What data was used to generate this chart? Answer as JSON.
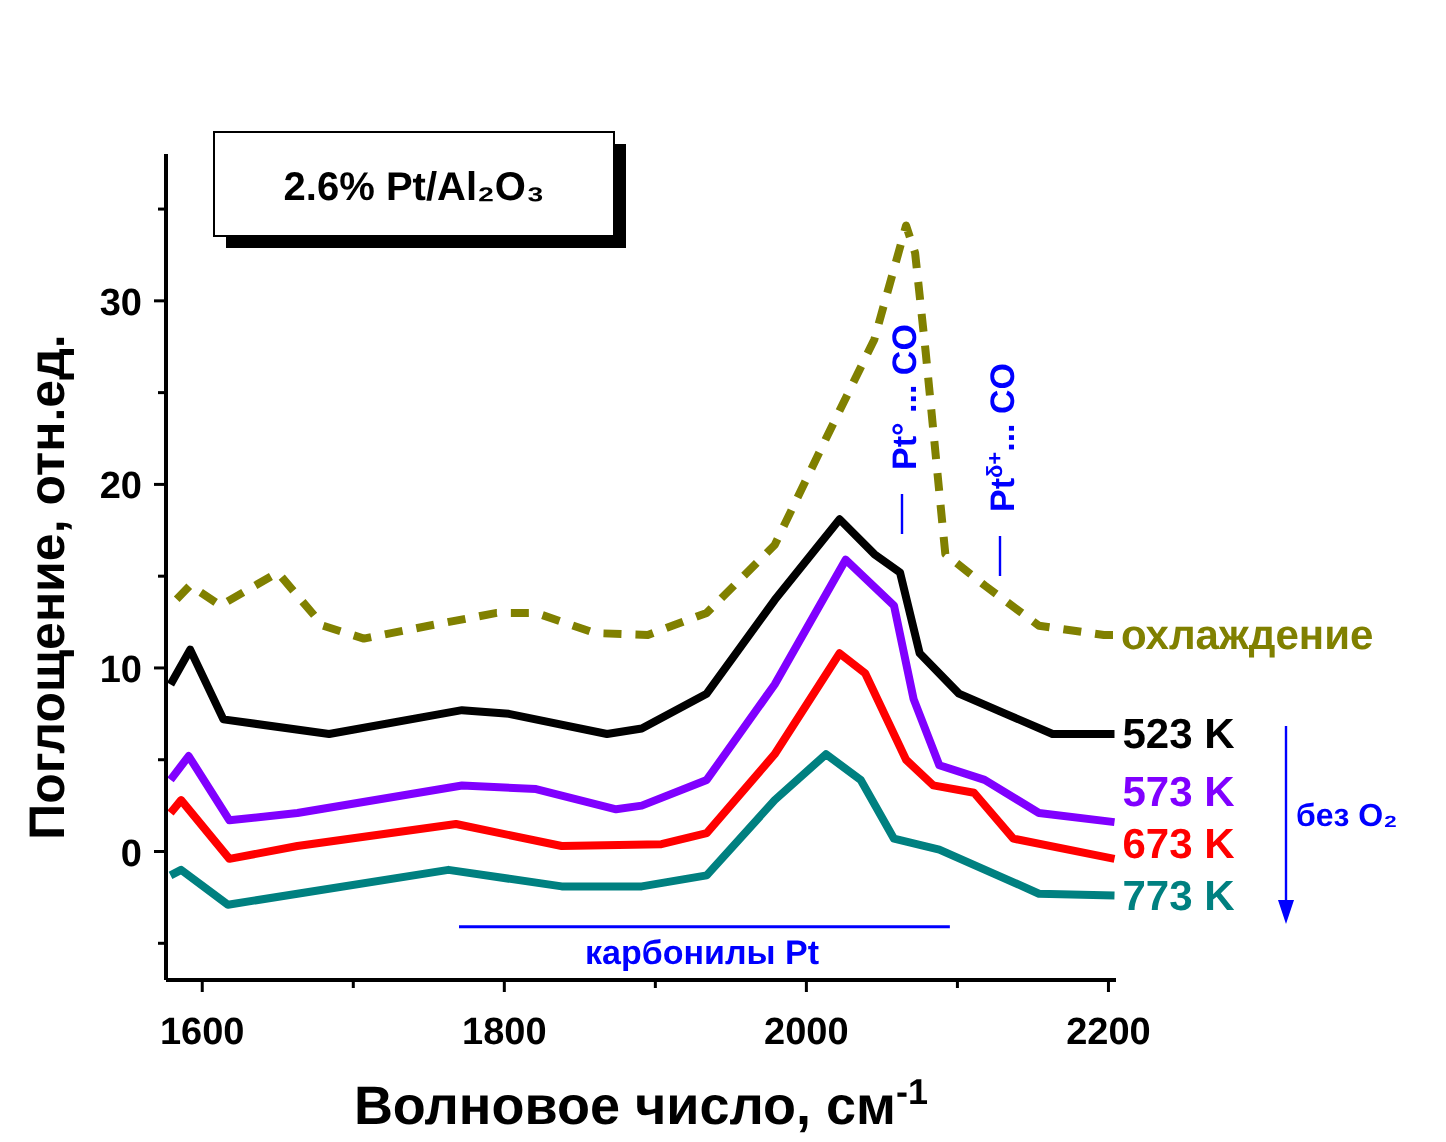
{
  "chart_data": {
    "type": "line",
    "title": "2.6% Pt/Al₂O₃",
    "xlabel": "Волновое число, см$^{-1}$",
    "ylabel": "Поглощение, отн.ед.",
    "xlim": [
      1576,
      2205
    ],
    "xticks": [
      1600,
      {
        "value": 1700,
        "label": null
      },
      1800,
      {
        "value": 1900,
        "label": null
      },
      2000,
      {
        "value": 2100,
        "label": null
      },
      2200
    ],
    "ylim": [
      -7,
      38
    ],
    "yticks": [
      {
        "value": -5,
        "label": null
      },
      0,
      {
        "value": 5,
        "label": null
      },
      10,
      {
        "value": 15,
        "label": null
      },
      20,
      {
        "value": 25,
        "label": null
      },
      30,
      {
        "value": 35,
        "label": null
      }
    ],
    "grid": false,
    "series": [
      {
        "name": "охлаждение",
        "color": "#808000",
        "line_style": "dashed",
        "x": [
          1579,
          1592,
          1612,
          1650,
          1680,
          1707,
          1750,
          1795,
          1821,
          1860,
          1895,
          1934,
          1979,
          2013,
          2045,
          2066,
          2072,
          2079,
          2092,
          2118,
          2154,
          2197,
          2203
        ],
        "values": [
          13.4,
          14.5,
          13.4,
          15.2,
          12.3,
          11.6,
          12.3,
          13.0,
          13.0,
          11.9,
          11.8,
          13.0,
          16.7,
          22.5,
          27.9,
          34.1,
          32.6,
          27.2,
          16.2,
          14.5,
          12.3,
          11.8,
          11.8
        ]
      },
      {
        "name": "523 K",
        "color": "#000000",
        "line_style": "solid",
        "x": [
          1579,
          1592,
          1614,
          1684,
          1772,
          1803,
          1868,
          1891,
          1934,
          1979,
          2022,
          2045,
          2062,
          2075,
          2101,
          2132,
          2163,
          2204
        ],
        "values": [
          9.1,
          11.0,
          7.2,
          6.4,
          7.7,
          7.5,
          6.4,
          6.7,
          8.6,
          13.7,
          18.1,
          16.2,
          15.2,
          10.8,
          8.6,
          7.5,
          6.4,
          6.4
        ]
      },
      {
        "name": "573 K",
        "color": "#8000ff",
        "line_style": "solid",
        "x": [
          1579,
          1591,
          1618,
          1663,
          1772,
          1821,
          1874,
          1891,
          1934,
          1979,
          2026,
          2058,
          2071,
          2088,
          2118,
          2154,
          2204
        ],
        "values": [
          3.9,
          5.2,
          1.7,
          2.1,
          3.6,
          3.4,
          2.3,
          2.5,
          3.9,
          9.1,
          15.9,
          13.4,
          8.3,
          4.7,
          3.9,
          2.1,
          1.6
        ]
      },
      {
        "name": "673 K",
        "color": "#ff0000",
        "line_style": "solid",
        "x": [
          1579,
          1586,
          1618,
          1663,
          1768,
          1838,
          1904,
          1934,
          1979,
          2022,
          2039,
          2066,
          2084,
          2111,
          2137,
          2204
        ],
        "values": [
          2.1,
          2.8,
          -0.4,
          0.3,
          1.5,
          0.3,
          0.4,
          1.0,
          5.3,
          10.8,
          9.7,
          5.0,
          3.6,
          3.2,
          0.7,
          -0.4
        ]
      },
      {
        "type": "line",
        "color": "#0000ff",
        "line_style": "solid",
        "x": [
          1770,
          2095
        ],
        "values": [
          -4.1,
          -4.1
        ]
      },
      {
        "name": "773 K",
        "color": "#008080",
        "line_style": "solid",
        "x": [
          1579,
          1586,
          1617,
          1663,
          1763,
          1838,
          1891,
          1934,
          1979,
          2013,
          2036,
          2058,
          2088,
          2124,
          2154,
          2204
        ],
        "values": [
          -1.3,
          -1.0,
          -2.9,
          -2.3,
          -1.0,
          -1.9,
          -1.9,
          -1.3,
          2.8,
          5.3,
          3.9,
          0.7,
          0.1,
          -1.2,
          -2.3,
          -2.4
        ]
      }
    ],
    "annotations": [
      "Pt° ... CO",
      "Pt$^{δ+}$... CO",
      "без O₂",
      "карбонилы Pt"
    ]
  }
}
